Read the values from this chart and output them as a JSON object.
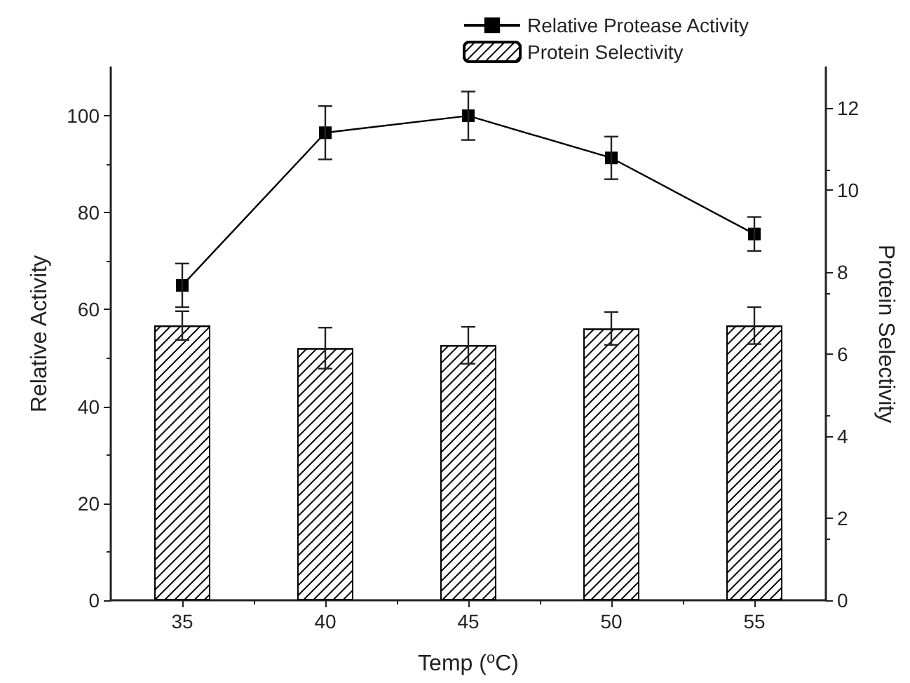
{
  "chart_data": {
    "type": "bar",
    "xlabel": "Temp ($^{o}$C)",
    "ylabel": "Relative Activity",
    "y2label": "Protein Selectivity",
    "x": [
      35,
      40,
      45,
      50,
      55
    ],
    "xlim": [
      32.5,
      57.5
    ],
    "xticks": [
      35,
      40,
      45,
      50,
      55
    ],
    "ylim": [
      0,
      110
    ],
    "yticks": [
      0,
      20,
      40,
      60,
      80,
      100
    ],
    "y2lim": [
      0,
      13
    ],
    "y2ticks": [
      0,
      2,
      4,
      6,
      8,
      10,
      12
    ],
    "series": [
      {
        "name": "Relative Protease Activity",
        "type": "line",
        "color": "#000000",
        "marker": "square",
        "values": [
          65,
          96.5,
          100,
          91.3,
          75.6
        ],
        "errors": [
          4.5,
          5.5,
          5,
          4.4,
          3.5
        ]
      },
      {
        "name": "Protein Selectivity",
        "axis": "y2",
        "color": "#ffffff",
        "values": [
          6.7,
          6.15,
          6.22,
          6.63,
          6.7
        ],
        "errors": [
          0.35,
          0.5,
          0.45,
          0.4,
          0.45
        ]
      }
    ],
    "legend": "top right",
    "grid": false
  }
}
